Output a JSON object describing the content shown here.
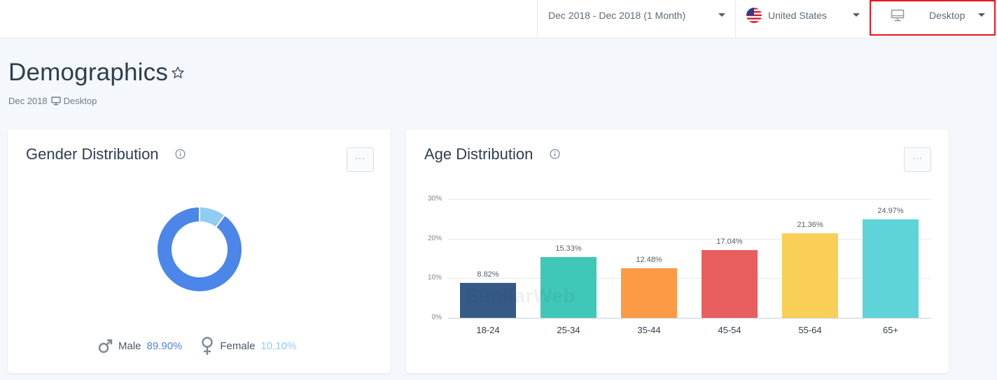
{
  "topbar": {
    "date_range": "Dec 2018 - Dec 2018 (1 Month)",
    "country": "United States",
    "device": "Desktop",
    "icons": [
      "caret-down-icon",
      "us-flag-icon",
      "desktop-icon"
    ]
  },
  "page": {
    "title": "Demographics",
    "subtitle_date": "Dec 2018",
    "subtitle_device": "Desktop"
  },
  "gender": {
    "title": "Gender Distribution",
    "more_label": "···",
    "male_label": "Male",
    "male_value": "89.90%",
    "female_label": "Female",
    "female_value": "10.10%",
    "colors": {
      "male": "#4b86e8",
      "female": "#8fcdf5"
    }
  },
  "age": {
    "title": "Age Distribution",
    "more_label": "···",
    "watermark": "SimilarWeb"
  },
  "chart_data": [
    {
      "type": "pie",
      "categories": [
        "Male",
        "Female"
      ],
      "values": [
        89.9,
        10.1
      ],
      "title": "Gender Distribution",
      "colors": [
        "#4b86e8",
        "#8fcdf5"
      ]
    },
    {
      "type": "bar",
      "title": "Age Distribution",
      "categories": [
        "18-24",
        "25-34",
        "35-44",
        "45-54",
        "55-64",
        "65+"
      ],
      "values": [
        8.82,
        15.33,
        12.48,
        17.04,
        21.36,
        24.97
      ],
      "value_labels": [
        "8.82%",
        "15.33%",
        "12.48%",
        "17.04%",
        "21.36%",
        "24.97%"
      ],
      "colors": [
        "#355a85",
        "#3fc7b7",
        "#fc9a45",
        "#e85d5d",
        "#f9cf58",
        "#5ed4d8"
      ],
      "ylim": [
        0,
        30
      ],
      "yticks": [
        "0%",
        "10%",
        "20%",
        "30%"
      ],
      "xlabel": "",
      "ylabel": "",
      "grid": true
    }
  ]
}
